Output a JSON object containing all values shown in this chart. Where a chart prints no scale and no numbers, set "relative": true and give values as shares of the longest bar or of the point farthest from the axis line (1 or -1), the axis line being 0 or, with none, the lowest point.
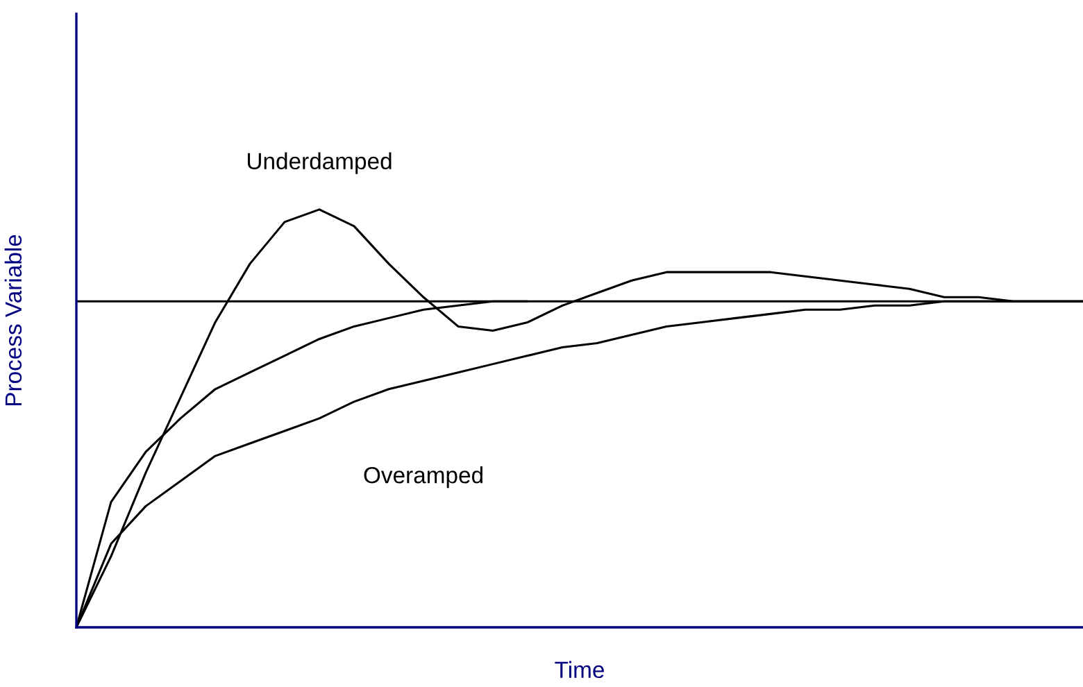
{
  "chart_data": {
    "type": "line",
    "relative": true,
    "xlabel": "Time",
    "ylabel": "Process Variable",
    "categories": [
      null,
      null,
      null,
      null,
      null,
      null,
      null,
      null,
      null,
      null,
      null,
      null,
      null,
      null,
      null,
      null,
      null,
      null,
      null,
      null,
      null,
      null,
      null,
      null,
      null,
      null,
      null,
      null,
      null,
      null
    ],
    "series": [
      {
        "name": "Underdamped",
        "color": "#000000",
        "values": [
          0,
          0.17,
          0.37,
          0.55,
          0.73,
          0.87,
          0.97,
          1.0,
          0.96,
          0.87,
          0.79,
          0.72,
          0.71,
          0.73,
          0.77,
          0.8,
          0.83,
          0.85,
          0.85,
          0.85,
          0.85,
          0.84,
          0.83,
          0.82,
          0.81,
          0.79,
          0.79,
          0.78,
          0.78,
          0.78
        ]
      },
      {
        "color": "#000000",
        "values": [
          0,
          0.3,
          0.42,
          0.5,
          0.57,
          0.61,
          0.65,
          0.69,
          0.72,
          0.74,
          0.76,
          0.77,
          0.78,
          0.78,
          null,
          null,
          null,
          null,
          null,
          null,
          null,
          null,
          null,
          null,
          null,
          null,
          null,
          null,
          null,
          null
        ]
      },
      {
        "name": "Overamped",
        "color": "#000000",
        "values": [
          0,
          0.2,
          0.29,
          0.35,
          0.41,
          0.44,
          0.47,
          0.5,
          0.54,
          0.57,
          0.59,
          0.61,
          0.63,
          0.65,
          0.67,
          0.68,
          0.7,
          0.72,
          0.73,
          0.74,
          0.75,
          0.76,
          0.76,
          0.77,
          0.77,
          0.78,
          0.78,
          0.78,
          0.78,
          0.78
        ]
      }
    ],
    "ref_lines": [
      {
        "axis": "y",
        "value": 0.78,
        "color": "#000000"
      }
    ],
    "grid": false,
    "legend": false,
    "marker": "none",
    "line_style": "solid"
  }
}
